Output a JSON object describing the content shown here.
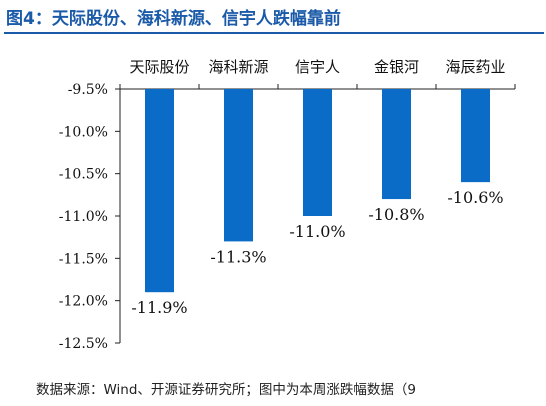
{
  "header": {
    "title": "图4：天际股份、海科新源、信宇人跌幅靠前"
  },
  "footer": {
    "source": "数据来源：Wind、开源证券研究所；图中为本周涨跌幅数据（9"
  },
  "colors": {
    "title": "#1a5aa8",
    "bar": "#0a6cc7"
  },
  "chart_data": {
    "type": "bar",
    "title": "",
    "xlabel": "",
    "ylabel": "",
    "categories": [
      "天际股份",
      "海科新源",
      "信宇人",
      "金银河",
      "海辰药业"
    ],
    "values": [
      -11.9,
      -11.3,
      -11.0,
      -10.8,
      -10.6
    ],
    "data_labels": [
      "-11.9%",
      "-11.3%",
      "-11.0%",
      "-10.8%",
      "-10.6%"
    ],
    "ylim": [
      -12.5,
      -9.5
    ],
    "y_ticks": [
      -9.5,
      -10.0,
      -10.5,
      -11.0,
      -11.5,
      -12.0,
      -12.5
    ],
    "y_tick_labels": [
      "-9.5%",
      "-10.0%",
      "-10.5%",
      "-11.0%",
      "-11.5%",
      "-12.0%",
      "-12.5%"
    ],
    "category_axis_position": "top",
    "grid": false,
    "legend": "none"
  }
}
